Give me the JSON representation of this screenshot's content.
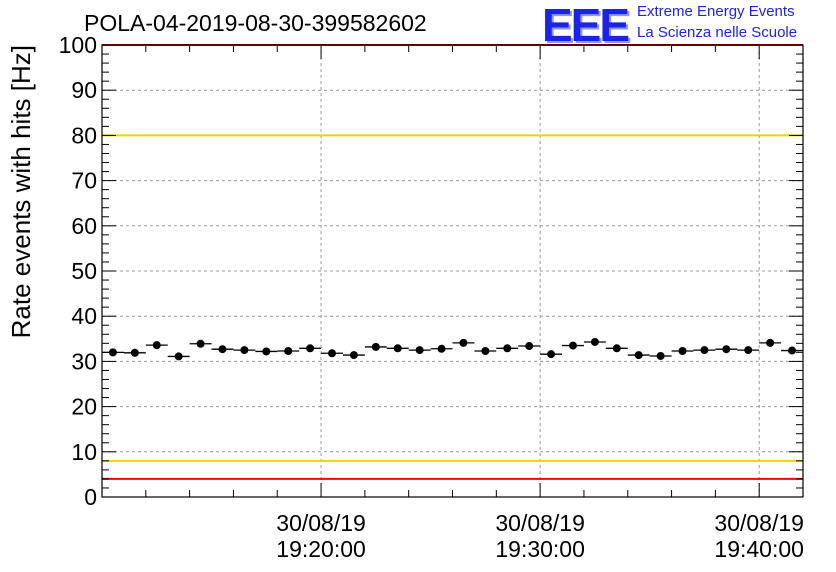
{
  "title": "POLA-04-2019-08-30-399582602",
  "logo": {
    "mark": "EEE",
    "line1": "Extreme Energy Events",
    "line2": "La Scienza nelle Scuole",
    "color": "#1b24e6"
  },
  "chart_data": {
    "type": "scatter",
    "title": "POLA-04-2019-08-30-399582602",
    "xlabel": "",
    "ylabel": "Rate events with hits [Hz]",
    "ylim": [
      0,
      100
    ],
    "yticks": [
      0,
      10,
      20,
      30,
      40,
      50,
      60,
      70,
      80,
      90,
      100
    ],
    "xlim": [
      "19:10:00",
      "19:42:00"
    ],
    "xticks": [
      {
        "time": "19:20:00",
        "date": "30/08/19"
      },
      {
        "time": "19:30:00",
        "date": "30/08/19"
      },
      {
        "time": "19:40:00",
        "date": "30/08/19"
      }
    ],
    "grid": true,
    "bin_width_s": 60,
    "series": [
      {
        "marker": "circle",
        "color": "#000000",
        "x": [
          "19:10:30",
          "19:11:30",
          "19:12:30",
          "19:13:30",
          "19:14:30",
          "19:15:30",
          "19:16:30",
          "19:17:30",
          "19:18:30",
          "19:19:30",
          "19:20:30",
          "19:21:30",
          "19:22:30",
          "19:23:30",
          "19:24:30",
          "19:25:30",
          "19:26:30",
          "19:27:30",
          "19:28:30",
          "19:29:30",
          "19:30:30",
          "19:31:30",
          "19:32:30",
          "19:33:30",
          "19:34:30",
          "19:35:30",
          "19:36:30",
          "19:37:30",
          "19:38:30",
          "19:39:30",
          "19:40:30",
          "19:41:30"
        ],
        "y": [
          32.0,
          31.9,
          33.6,
          31.1,
          33.9,
          32.7,
          32.5,
          32.2,
          32.3,
          32.9,
          31.8,
          31.4,
          33.2,
          32.9,
          32.5,
          32.8,
          34.1,
          32.3,
          32.9,
          33.4,
          31.6,
          33.5,
          34.3,
          32.9,
          31.4,
          31.2,
          32.3,
          32.5,
          32.7,
          32.5,
          34.1,
          32.4
        ]
      }
    ],
    "reference_lines": [
      {
        "y": 100,
        "color": "#ff0000"
      },
      {
        "y": 80,
        "color": "#f2d100"
      },
      {
        "y": 8,
        "color": "#f2d100"
      },
      {
        "y": 4,
        "color": "#ff0000"
      }
    ]
  }
}
